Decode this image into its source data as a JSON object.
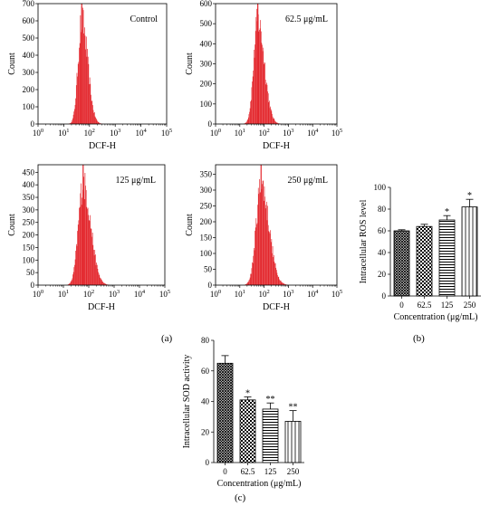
{
  "colors": {
    "histogram": "#e3262c",
    "axis": "#000000",
    "bar_fill": "#ffffff"
  },
  "panel_labels": {
    "a": "(a)",
    "b": "(b)",
    "c": "(c)"
  },
  "chart_data": [
    {
      "type": "histogram",
      "panel": "a",
      "annotation": "Control",
      "xlabel": "DCF-H",
      "ylabel": "Count",
      "x_scale": "log",
      "xlim": [
        1,
        100000
      ],
      "x_ticks": [
        "10^0",
        "10^1",
        "10^2",
        "10^3",
        "10^4",
        "10^5"
      ],
      "ylim": [
        0,
        700
      ],
      "y_ticks": [
        "0",
        "100",
        "200",
        "300",
        "400",
        "500",
        "600",
        "700"
      ],
      "distribution": {
        "peak_x": 50,
        "peak_count": 700,
        "spread_log10": 0.17
      }
    },
    {
      "type": "histogram",
      "panel": "a",
      "annotation": "62.5 μg/mL",
      "xlabel": "DCF-H",
      "ylabel": "Count",
      "x_scale": "log",
      "xlim": [
        1,
        100000
      ],
      "x_ticks": [
        "10^0",
        "10^1",
        "10^2",
        "10^3",
        "10^4",
        "10^5"
      ],
      "ylim": [
        0,
        600
      ],
      "y_ticks": [
        "0",
        "100",
        "200",
        "300",
        "400",
        "500",
        "600"
      ],
      "distribution": {
        "peak_x": 55,
        "peak_count": 600,
        "spread_log10": 0.2
      }
    },
    {
      "type": "histogram",
      "panel": "a",
      "annotation": "125 μg/mL",
      "xlabel": "DCF-H",
      "ylabel": "Count",
      "x_scale": "log",
      "xlim": [
        1,
        100000
      ],
      "x_ticks": [
        "10^0",
        "10^1",
        "10^2",
        "10^3",
        "10^4",
        "10^5"
      ],
      "ylim": [
        0,
        480
      ],
      "y_ticks": [
        "0",
        "50",
        "100",
        "150",
        "200",
        "250",
        "300",
        "350",
        "400",
        "450"
      ],
      "distribution": {
        "peak_x": 60,
        "peak_count": 470,
        "spread_log10": 0.22
      }
    },
    {
      "type": "histogram",
      "panel": "a",
      "annotation": "250 μg/mL",
      "xlabel": "DCF-H",
      "ylabel": "Count",
      "x_scale": "log",
      "xlim": [
        1,
        100000
      ],
      "x_ticks": [
        "10^0",
        "10^1",
        "10^2",
        "10^3",
        "10^4",
        "10^5"
      ],
      "ylim": [
        0,
        380
      ],
      "y_ticks": [
        "0",
        "50",
        "100",
        "150",
        "200",
        "250",
        "300",
        "350"
      ],
      "distribution": {
        "peak_x": 75,
        "peak_count": 370,
        "spread_log10": 0.24
      }
    },
    {
      "type": "bar",
      "panel": "b",
      "categories": [
        "0",
        "62.5",
        "125",
        "250"
      ],
      "values": [
        60,
        64,
        70,
        82
      ],
      "errors": [
        1,
        2,
        4,
        7
      ],
      "significance": [
        "",
        "",
        "*",
        "*"
      ],
      "patterns": [
        "crosshatch",
        "checker",
        "hlines",
        "vlines"
      ],
      "xlabel": "Concentration (μg/mL)",
      "ylabel": "Intracellular ROS level",
      "ylim": [
        0,
        100
      ],
      "y_ticks": [
        "0",
        "20",
        "40",
        "60",
        "80",
        "100"
      ]
    },
    {
      "type": "bar",
      "panel": "c",
      "categories": [
        "0",
        "62.5",
        "125",
        "250"
      ],
      "values": [
        65,
        41,
        35,
        27
      ],
      "errors": [
        5,
        2,
        4,
        7
      ],
      "significance": [
        "",
        "*",
        "**",
        "**"
      ],
      "patterns": [
        "crosshatch",
        "checker",
        "hlines",
        "vlines"
      ],
      "xlabel": "Concentration (μg/mL)",
      "ylabel": "Intracellular SOD activity",
      "ylim": [
        0,
        80
      ],
      "y_ticks": [
        "0",
        "20",
        "40",
        "60",
        "80"
      ]
    }
  ]
}
